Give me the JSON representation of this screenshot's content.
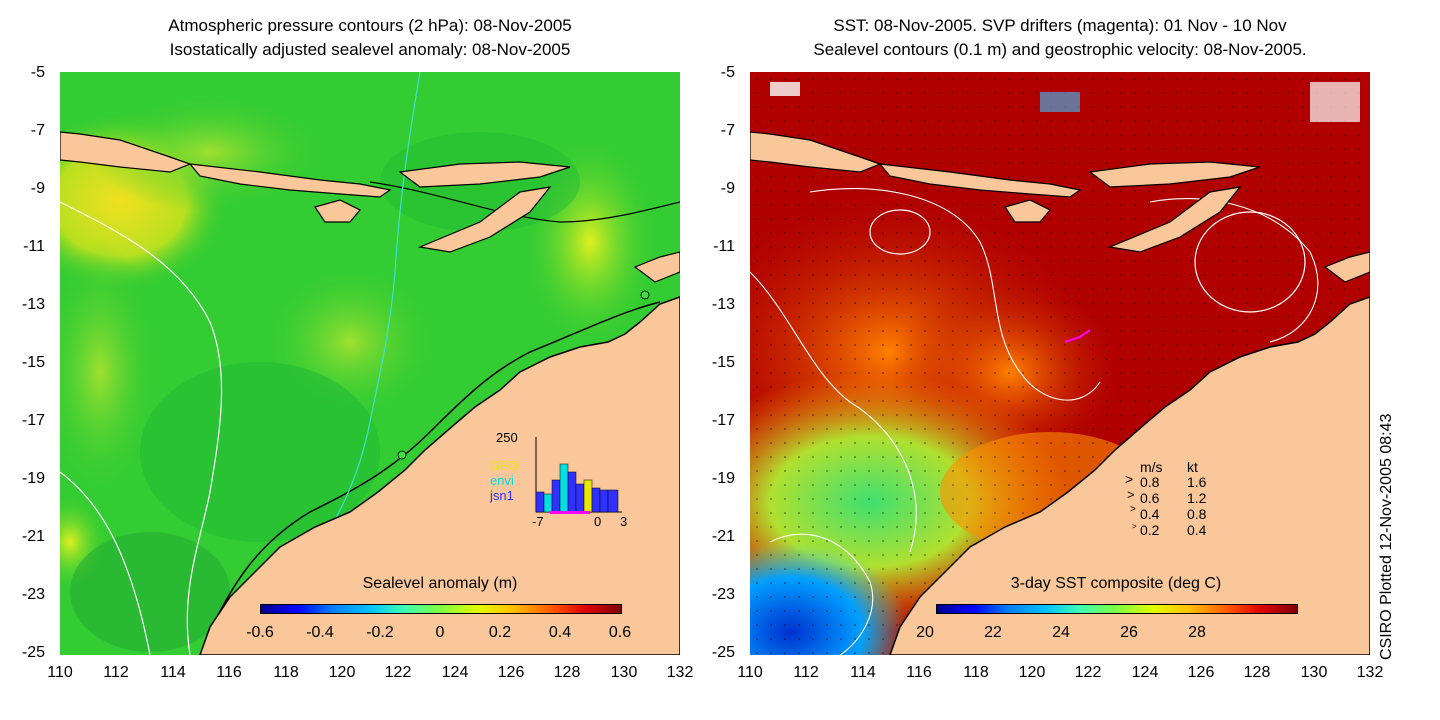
{
  "left": {
    "title_line1": "Atmospheric pressure contours (2 hPa): 08-Nov-2005",
    "title_line2": "Isostatically adjusted sealevel anomaly: 08-Nov-2005",
    "colorbar_title": "Sealevel anomaly (m)",
    "colorbar_ticks": [
      "-0.6",
      "-0.4",
      "-0.2",
      "0",
      "0.2",
      "0.4",
      "0.6"
    ],
    "inset": {
      "ymax_label": "250",
      "legend": [
        {
          "label": "GFO",
          "color": "#e8e800"
        },
        {
          "label": "envi",
          "color": "#00e0e0"
        },
        {
          "label": "jsn1",
          "color": "#3030ff"
        }
      ],
      "xticks": [
        "-7",
        "0",
        "3"
      ]
    }
  },
  "right": {
    "title_line1": "SST: 08-Nov-2005. SVP drifters (magenta): 01 Nov - 10 Nov",
    "title_line2": "Sealevel contours (0.1 m) and geostrophic velocity: 08-Nov-2005.",
    "colorbar_title": "3-day SST composite (deg C)",
    "colorbar_ticks": [
      "20",
      "22",
      "24",
      "26",
      "28"
    ],
    "velocity_legend": {
      "header_ms": "m/s",
      "header_kt": "kt",
      "rows": [
        {
          "ms": "0.8",
          "kt": "1.6"
        },
        {
          "ms": "0.6",
          "kt": "1.2"
        },
        {
          "ms": "0.4",
          "kt": "0.8"
        },
        {
          "ms": "0.2",
          "kt": "0.4"
        }
      ]
    }
  },
  "y_ticks": [
    "-5",
    "-7",
    "-9",
    "-11",
    "-13",
    "-15",
    "-17",
    "-19",
    "-21",
    "-23",
    "-25"
  ],
  "x_ticks": [
    "110",
    "112",
    "114",
    "116",
    "118",
    "120",
    "122",
    "124",
    "126",
    "128",
    "130",
    "132"
  ],
  "credit": "CSIRO Plotted 12-Nov-2005 08:43",
  "colors": {
    "land": "#f9c79a",
    "sla_background": "#33cc33",
    "sst_background": "#b00000",
    "contour_cyan": "#40e0d0",
    "drifter_magenta": "#ff00ff"
  }
}
